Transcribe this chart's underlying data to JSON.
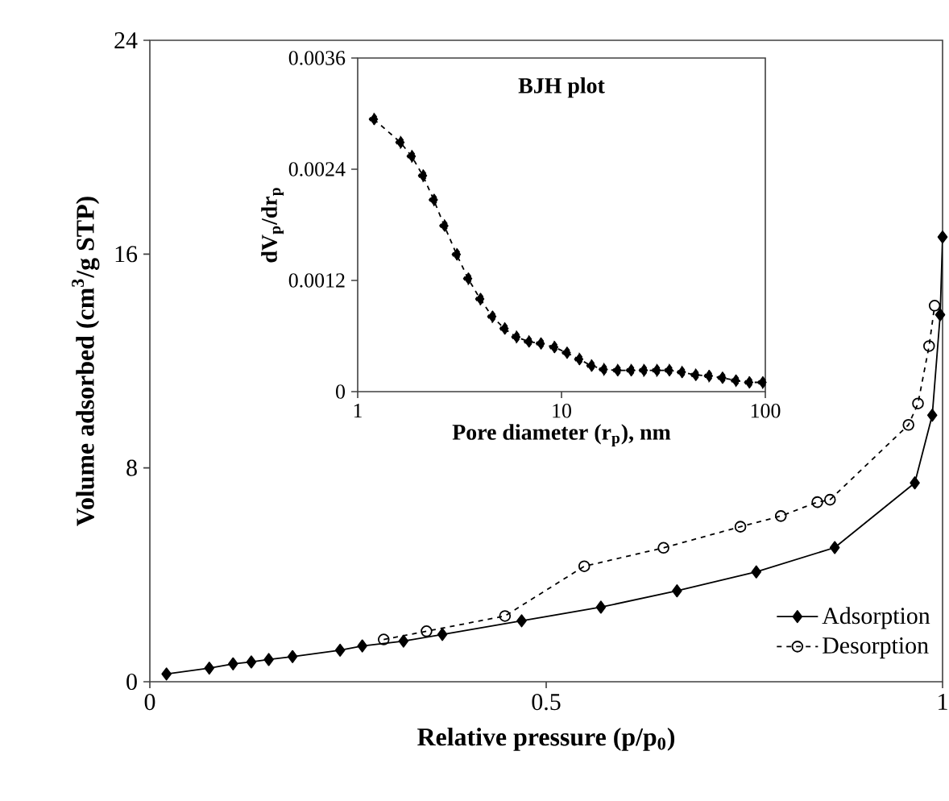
{
  "chart_data": [
    {
      "type": "line",
      "xlabel": "Relative pressure (p/p$_{0}$)",
      "ylabel": "Volume adsorbed (cm$^{3}$/g STP)",
      "xlim": [
        0,
        1
      ],
      "ylim": [
        0,
        24
      ],
      "xticks": [
        0,
        0.5,
        1
      ],
      "yticks": [
        0,
        8,
        16,
        24
      ],
      "legend": "bottom right",
      "series": [
        {
          "name": "Adsorption",
          "color": "#000000",
          "marker": "diamond",
          "line_style": "solid",
          "x": [
            0.021,
            0.075,
            0.105,
            0.128,
            0.15,
            0.18,
            0.24,
            0.268,
            0.32,
            0.369,
            0.469,
            0.569,
            0.665,
            0.765,
            0.864,
            0.965,
            0.987,
            0.997,
            1.0
          ],
          "values": [
            0.29,
            0.51,
            0.67,
            0.74,
            0.83,
            0.94,
            1.18,
            1.34,
            1.52,
            1.77,
            2.28,
            2.79,
            3.4,
            4.11,
            5.02,
            7.44,
            9.97,
            13.73,
            16.64
          ]
        },
        {
          "name": "Desorption",
          "color": "#000000",
          "marker": "circle",
          "line_style": "dashed",
          "x": [
            0.295,
            0.349,
            0.448,
            0.548,
            0.648,
            0.745,
            0.796,
            0.842,
            0.858,
            0.957,
            0.969,
            0.983,
            0.99
          ],
          "values": [
            1.58,
            1.89,
            2.46,
            4.32,
            5.01,
            5.8,
            6.2,
            6.72,
            6.81,
            9.61,
            10.41,
            12.56,
            14.07
          ]
        }
      ]
    },
    {
      "type": "line",
      "title": "BJH plot",
      "xlabel": "Pore diameter (r$_{p}$), nm",
      "ylabel": "dV$_{p}$/dr$_{p}$",
      "log": "x",
      "xlim": [
        1,
        100
      ],
      "ylim": [
        0,
        0.0036
      ],
      "xticks": [
        1,
        10,
        100
      ],
      "yticks": [
        0,
        0.0012,
        0.0024,
        0.0036
      ],
      "series": [
        {
          "color": "#000000",
          "marker": "diamond",
          "line_style": "dashed",
          "x": [
            1.2,
            1.62,
            1.84,
            2.09,
            2.36,
            2.66,
            3.06,
            3.48,
            3.99,
            4.57,
            5.25,
            6.0,
            6.9,
            7.9,
            9.2,
            10.6,
            12.2,
            14.0,
            16.1,
            18.8,
            21.9,
            25.3,
            29.3,
            33.7,
            38.9,
            45.4,
            52.8,
            61.4,
            71.5,
            83.2,
            96.8
          ],
          "values": [
            0.00294,
            0.00269,
            0.00254,
            0.00233,
            0.00207,
            0.00179,
            0.00148,
            0.00122,
            0.001,
            0.00081,
            0.00068,
            0.00059,
            0.00054,
            0.00052,
            0.00048,
            0.00042,
            0.00035,
            0.00028,
            0.00024,
            0.00023,
            0.00023,
            0.00023,
            0.00023,
            0.00023,
            0.00021,
            0.00018,
            0.00017,
            0.00015,
            0.00012,
            0.0001,
            0.0001
          ]
        }
      ]
    }
  ]
}
